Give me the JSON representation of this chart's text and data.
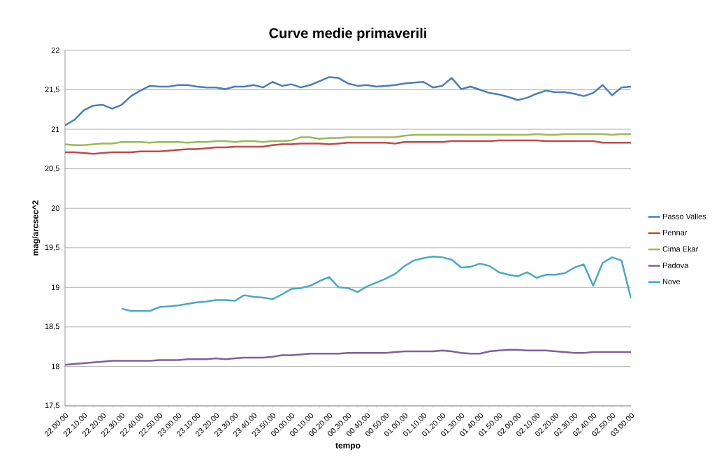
{
  "chart_data": {
    "type": "line",
    "title": "Curve medie primaverili",
    "xlabel": "tempo",
    "ylabel": "mag/arcsec^2",
    "categories": [
      "22.00.00",
      null,
      "22.10.00",
      null,
      "22.20.00",
      null,
      "22.30.00",
      null,
      "22.40.00",
      null,
      "22.50.00",
      null,
      "23.00.00",
      null,
      "23.10.00",
      null,
      "23.20.00",
      null,
      "23.30.00",
      null,
      "23.40.00",
      null,
      "23.50.00",
      null,
      "00.00.00",
      null,
      "00.10.00",
      null,
      "00.20.00",
      null,
      "00.30.00",
      null,
      "00.40.00",
      null,
      "00.50.00",
      null,
      "01.00.00",
      null,
      "01.10.00",
      null,
      "01.20.00",
      null,
      "01.30.00",
      null,
      "01.40.00",
      null,
      "01.50.00",
      null,
      "02.00.00",
      null,
      "02.10.00",
      null,
      "02.20.00",
      null,
      "02.30.00",
      null,
      "02.40.00",
      null,
      "02.50.00",
      null,
      "03.00.00"
    ],
    "series": [
      {
        "name": "Passo Valles",
        "color": "#4a7ebb",
        "values": [
          21.05,
          21.12,
          21.24,
          21.3,
          21.31,
          21.26,
          21.31,
          21.42,
          21.49,
          21.55,
          21.54,
          21.54,
          21.56,
          21.56,
          21.54,
          21.53,
          21.53,
          21.51,
          21.54,
          21.54,
          21.56,
          21.53,
          21.6,
          21.55,
          21.57,
          21.53,
          21.56,
          21.61,
          21.66,
          21.65,
          21.58,
          21.55,
          21.56,
          21.54,
          21.55,
          21.56,
          21.58,
          21.59,
          21.6,
          21.53,
          21.55,
          21.65,
          21.51,
          21.54,
          21.5,
          21.46,
          21.44,
          21.41,
          21.37,
          21.4,
          21.45,
          21.49,
          21.47,
          21.47,
          21.45,
          21.42,
          21.46,
          21.56,
          21.43,
          21.53,
          21.54
        ]
      },
      {
        "name": "Pennar",
        "color": "#be4b48",
        "values": [
          20.71,
          20.71,
          20.7,
          20.69,
          20.7,
          20.71,
          20.71,
          20.71,
          20.72,
          20.72,
          20.72,
          20.73,
          20.74,
          20.75,
          20.75,
          20.76,
          20.77,
          20.77,
          20.78,
          20.78,
          20.78,
          20.78,
          20.8,
          20.81,
          20.81,
          20.82,
          20.82,
          20.82,
          20.81,
          20.82,
          20.83,
          20.83,
          20.83,
          20.83,
          20.83,
          20.82,
          20.84,
          20.84,
          20.84,
          20.84,
          20.84,
          20.85,
          20.85,
          20.85,
          20.85,
          20.85,
          20.86,
          20.86,
          20.86,
          20.86,
          20.86,
          20.85,
          20.85,
          20.85,
          20.85,
          20.85,
          20.85,
          20.83,
          20.83,
          20.83,
          20.83
        ]
      },
      {
        "name": "Cima Ekar",
        "color": "#98b954",
        "values": [
          20.81,
          20.8,
          20.8,
          20.81,
          20.82,
          20.82,
          20.84,
          20.84,
          20.84,
          20.83,
          20.84,
          20.84,
          20.84,
          20.83,
          20.84,
          20.84,
          20.85,
          20.85,
          20.84,
          20.85,
          20.85,
          20.84,
          20.85,
          20.85,
          20.86,
          20.9,
          20.9,
          20.88,
          20.89,
          20.89,
          20.9,
          20.9,
          20.9,
          20.9,
          20.9,
          20.9,
          20.92,
          20.93,
          20.93,
          20.93,
          20.93,
          20.93,
          20.93,
          20.93,
          20.93,
          20.93,
          20.93,
          20.93,
          20.93,
          20.93,
          20.94,
          20.93,
          20.93,
          20.94,
          20.94,
          20.94,
          20.94,
          20.94,
          20.93,
          20.94,
          20.94
        ]
      },
      {
        "name": "Padova",
        "color": "#7d60a0",
        "values": [
          18.02,
          18.03,
          18.04,
          18.05,
          18.06,
          18.07,
          18.07,
          18.07,
          18.07,
          18.07,
          18.08,
          18.08,
          18.08,
          18.09,
          18.09,
          18.09,
          18.1,
          18.09,
          18.1,
          18.11,
          18.11,
          18.11,
          18.12,
          18.14,
          18.14,
          18.15,
          18.16,
          18.16,
          18.16,
          18.16,
          18.17,
          18.17,
          18.17,
          18.17,
          18.17,
          18.18,
          18.19,
          18.19,
          18.19,
          18.19,
          18.2,
          18.19,
          18.17,
          18.16,
          18.16,
          18.19,
          18.2,
          18.21,
          18.21,
          18.2,
          18.2,
          18.2,
          18.19,
          18.18,
          18.17,
          18.17,
          18.18,
          18.18,
          18.18,
          18.18,
          18.18
        ]
      },
      {
        "name": "Nove",
        "color": "#46aac5",
        "values": [
          null,
          null,
          null,
          null,
          null,
          null,
          18.73,
          18.7,
          18.7,
          18.7,
          18.75,
          18.76,
          18.77,
          18.79,
          18.81,
          18.82,
          18.84,
          18.84,
          18.83,
          18.9,
          18.88,
          18.87,
          18.85,
          18.91,
          18.98,
          18.99,
          19.02,
          19.08,
          19.13,
          19.0,
          18.99,
          18.94,
          19.01,
          19.06,
          19.11,
          19.17,
          19.27,
          19.34,
          19.37,
          19.39,
          19.38,
          19.35,
          19.25,
          19.26,
          19.3,
          19.27,
          19.19,
          19.16,
          19.14,
          19.19,
          19.12,
          19.16,
          19.16,
          19.18,
          19.25,
          19.29,
          19.02,
          19.31,
          19.38,
          19.34,
          18.86
        ]
      }
    ],
    "ylim": [
      17.5,
      22
    ],
    "yticks": [
      {
        "value": 17.5,
        "label": "17,5"
      },
      18,
      {
        "value": 18.5,
        "label": "18,5"
      },
      19,
      {
        "value": 19.5,
        "label": "19,5"
      },
      20,
      {
        "value": 20.5,
        "label": "20,5"
      },
      21,
      {
        "value": 21.5,
        "label": "21,5"
      },
      22
    ],
    "grid": "y",
    "legend": "right",
    "marker": "none",
    "line_style": "solid"
  }
}
